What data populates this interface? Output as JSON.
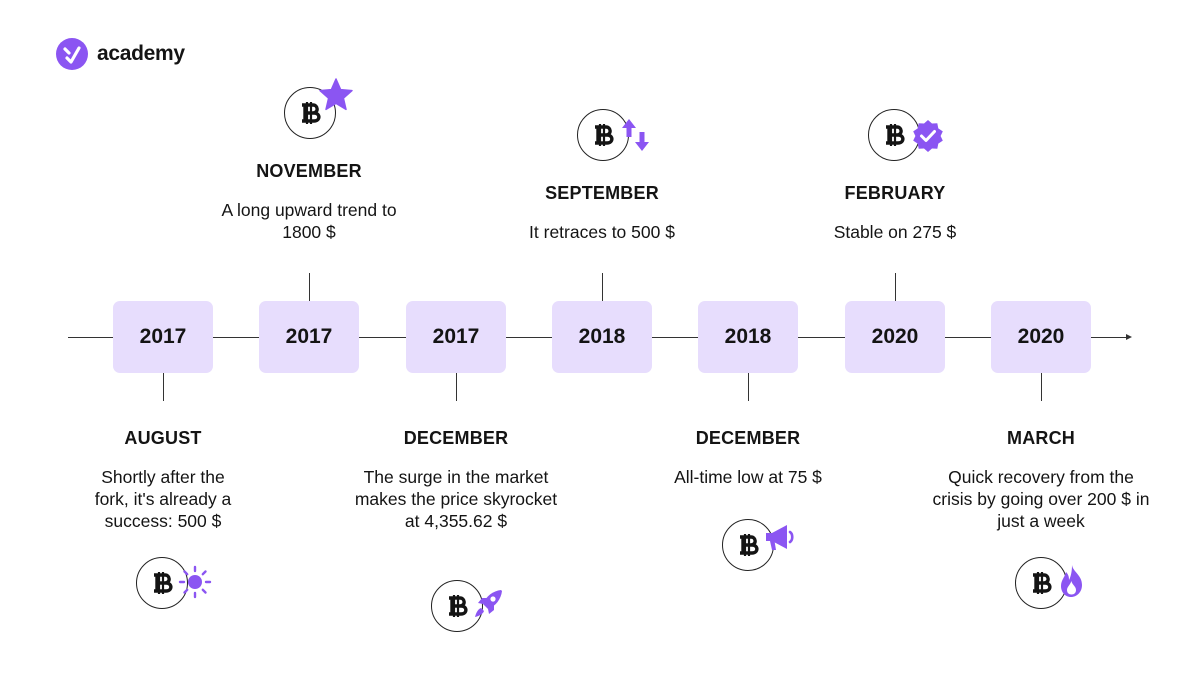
{
  "brand": {
    "name": "academy"
  },
  "colors": {
    "accent": "#8b55f2",
    "year_box": "#e7ddfd",
    "axis": "#333333"
  },
  "timeline": [
    {
      "year": "2017",
      "month": "AUGUST",
      "description": "Shortly after the fork, it's already a success: 500 $",
      "position": "below",
      "badge_icon": "sun-icon"
    },
    {
      "year": "2017",
      "month": "NOVEMBER",
      "description": "A long upward trend to 1800 $",
      "position": "above",
      "badge_icon": "star-icon"
    },
    {
      "year": "2017",
      "month": "DECEMBER",
      "description": "The surge in the market makes the price skyrocket at 4,355.62 $",
      "position": "below",
      "badge_icon": "rocket-icon"
    },
    {
      "year": "2018",
      "month": "SEPTEMBER",
      "description": "It retraces to 500 $",
      "position": "above",
      "badge_icon": "up-down-arrows-icon"
    },
    {
      "year": "2018",
      "month": "DECEMBER",
      "description": "All-time low at 75 $",
      "position": "below",
      "badge_icon": "megaphone-icon"
    },
    {
      "year": "2020",
      "month": "FEBRUARY",
      "description": "Stable on 275 $",
      "position": "above",
      "badge_icon": "verified-badge-icon"
    },
    {
      "year": "2020",
      "month": "MARCH",
      "description": "Quick recovery from the crisis by going over 200 $ in just a week",
      "position": "below",
      "badge_icon": "fire-icon"
    }
  ]
}
